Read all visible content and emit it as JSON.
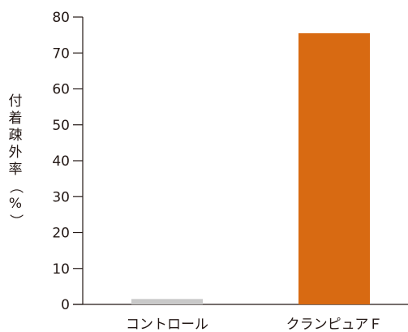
{
  "chart_data": {
    "type": "bar",
    "categories": [
      "コントロール",
      "クランピュアＦ"
    ],
    "values": [
      1.5,
      75.5
    ],
    "colors": [
      "#c9c9c9",
      "#d86a12"
    ],
    "title": "",
    "xlabel": "",
    "ylabel": "付着疎外率（%）",
    "ylim": [
      0,
      80
    ],
    "yticks": [
      0,
      10,
      20,
      30,
      40,
      50,
      60,
      70,
      80
    ],
    "grid": false,
    "legend": "none"
  }
}
